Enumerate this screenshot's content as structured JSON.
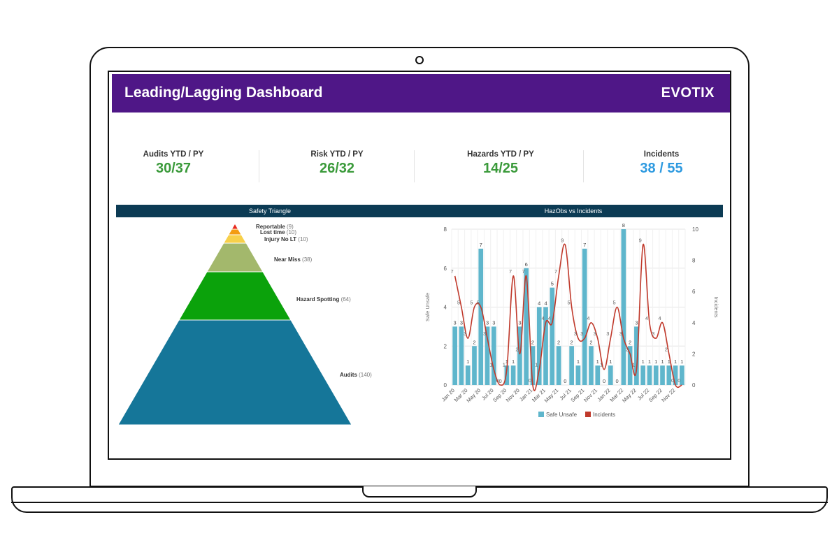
{
  "header": {
    "title": "Leading/Lagging Dashboard",
    "logo": "EVOTIX",
    "bg_color": "#4f1787"
  },
  "kpis": [
    {
      "label": "Audits YTD / PY",
      "value": "30/37",
      "color": "#3a9a3a"
    },
    {
      "label": "Risk YTD / PY",
      "value": "26/32",
      "color": "#3a9a3a"
    },
    {
      "label": "Hazards YTD / PY",
      "value": "14/25",
      "color": "#3a9a3a"
    },
    {
      "label": "Incidents",
      "value": "38 / 55",
      "color": "#2e9ae0"
    }
  ],
  "sections": {
    "left_title": "Safety Triangle",
    "right_title": "HazObs vs Incidents"
  },
  "triangle": [
    {
      "label": "Reportable",
      "count": "(9)",
      "value": 9,
      "color": "#e8281c"
    },
    {
      "label": "Lost time",
      "count": "(10)",
      "value": 10,
      "color": "#f39c12"
    },
    {
      "label": "Injury No LT",
      "count": "(10)",
      "value": 10,
      "color": "#f7d04a"
    },
    {
      "label": "Near Miss",
      "count": "(38)",
      "value": 38,
      "color": "#a3b86c"
    },
    {
      "label": "Hazard Spotting",
      "count": "(64)",
      "value": 64,
      "color": "#0ba20b"
    },
    {
      "label": "Audits",
      "count": "(140)",
      "value": 140,
      "color": "#157699"
    }
  ],
  "chart_data": {
    "type": "bar",
    "title": "HazObs vs Incidents",
    "x": [
      "Jan 20",
      "Feb 20",
      "Mar 20",
      "Apr 20",
      "May 20",
      "Jun 20",
      "Jul 20",
      "Aug 20",
      "Sep 20",
      "Oct 20",
      "Nov 20",
      "Dec 20",
      "Jan 21",
      "Feb 21",
      "Mar 21",
      "Apr 21",
      "May 21",
      "Jun 21",
      "Jul 21",
      "Aug 21",
      "Sep 21",
      "Oct 21",
      "Nov 21",
      "Dec 21",
      "Jan 22",
      "Feb 22",
      "Mar 22",
      "Apr 22",
      "May 22",
      "Jun 22",
      "Jul 22",
      "Aug 22",
      "Sep 22",
      "Oct 22",
      "Nov 22",
      "Dec 22"
    ],
    "x_tick_labels": [
      "Jan 20",
      "Mar 20",
      "May 20",
      "Jul 20",
      "Sep 20",
      "Nov 20",
      "Jan 21",
      "Mar 21",
      "May 21",
      "Jul 21",
      "Sep 21",
      "Nov 21",
      "Jan 22",
      "Mar 22",
      "May 22",
      "Jul 22",
      "Sep 22",
      "Nov 22"
    ],
    "series": [
      {
        "name": "Safe Unsafe",
        "type": "bar",
        "axis": "left",
        "color": "#5fb6cc",
        "values": [
          3,
          3,
          1,
          2,
          7,
          3,
          3,
          0,
          1,
          1,
          3,
          6,
          2,
          4,
          4,
          5,
          2,
          0,
          2,
          1,
          7,
          2,
          1,
          0,
          1,
          0,
          8,
          2,
          3,
          1,
          1,
          1,
          1,
          1,
          1,
          1
        ]
      },
      {
        "name": "Incidents",
        "type": "line",
        "axis": "right",
        "color": "#c0392b",
        "values": [
          7,
          5,
          3,
          5,
          5,
          3,
          1,
          0,
          1,
          7,
          2,
          7,
          0,
          1,
          4,
          4,
          7,
          9,
          5,
          3,
          3,
          4,
          3,
          1,
          3,
          5,
          3,
          2,
          1,
          9,
          4,
          3,
          4,
          2,
          0,
          0
        ]
      }
    ],
    "ylabel_left": "Safe Unsafe",
    "ylabel_right": "Incidents",
    "ylim_left": [
      0,
      8
    ],
    "ylim_right": [
      0,
      10
    ],
    "yticks_left": [
      0,
      2,
      4,
      6,
      8
    ],
    "yticks_right": [
      0,
      2,
      4,
      6,
      8,
      10
    ],
    "legend": [
      "Safe Unsafe",
      "Incidents"
    ],
    "legend_position": "bottom",
    "grid": true
  }
}
